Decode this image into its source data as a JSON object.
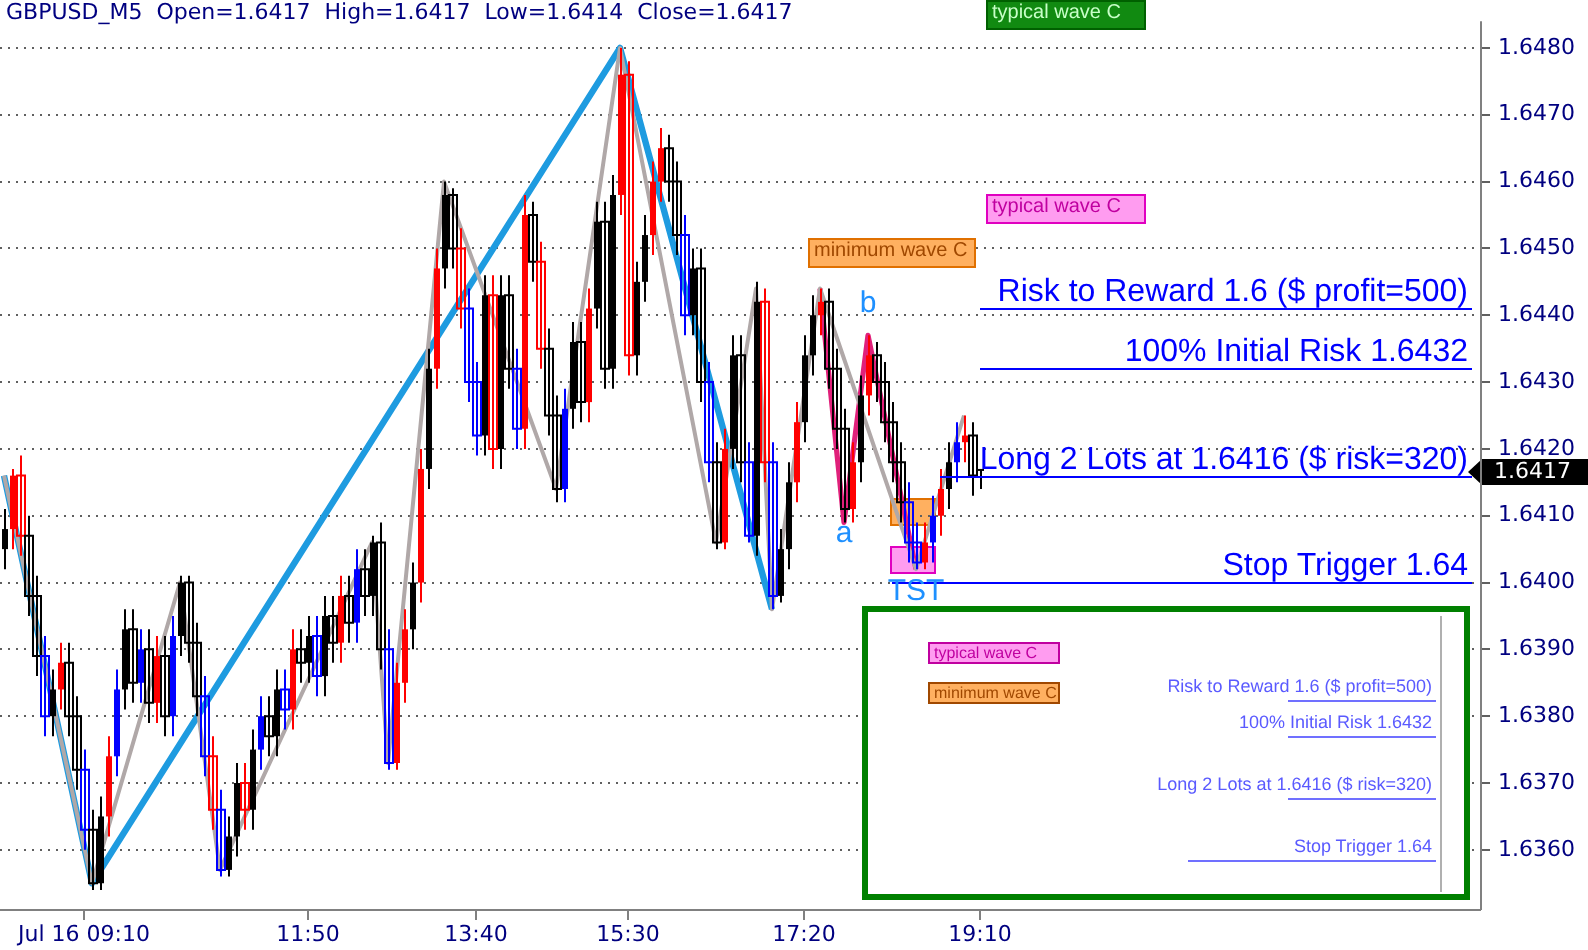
{
  "chart_data": {
    "type": "candlestick",
    "title": "GBPUSD_M5  Open=1.6417  High=1.6417  Low=1.6414  Close=1.6417",
    "categories": [
      null,
      null,
      null,
      null,
      null,
      null,
      null,
      null,
      null,
      null,
      "Jul 16 09:10",
      null,
      null,
      null,
      null,
      null,
      null,
      null,
      null,
      null,
      null,
      null,
      null,
      null,
      null,
      null,
      null,
      null,
      null,
      null,
      null,
      null,
      null,
      null,
      null,
      null,
      null,
      null,
      "11:50",
      null,
      null,
      null,
      null,
      null,
      null,
      null,
      null,
      null,
      null,
      null,
      null,
      null,
      null,
      null,
      null,
      null,
      null,
      null,
      null,
      "13:40",
      null,
      null,
      null,
      null,
      null,
      null,
      null,
      null,
      null,
      null,
      null,
      null,
      null,
      null,
      null,
      null,
      null,
      null,
      "15:30",
      null,
      null,
      null,
      null,
      null,
      null,
      null,
      null,
      null,
      null,
      null,
      null,
      null,
      null,
      null,
      null,
      null,
      null,
      null,
      null,
      null,
      "17:20",
      null,
      null,
      null,
      null,
      null,
      null,
      null,
      null,
      null,
      null,
      null,
      null,
      null,
      null,
      null,
      null,
      null,
      null,
      null,
      null,
      null,
      "19:10",
      null,
      null,
      null,
      null,
      null,
      null,
      null,
      null,
      null,
      null,
      null,
      null,
      null,
      null,
      null,
      null,
      null,
      null,
      null,
      null,
      null,
      null,
      null,
      null,
      null,
      null,
      null,
      null,
      null,
      null,
      null,
      null,
      null,
      null,
      null,
      null,
      null,
      null,
      null,
      null,
      null,
      null,
      null,
      null,
      null,
      null,
      null,
      null,
      null,
      null,
      null,
      null,
      null,
      null,
      null,
      null,
      null,
      null,
      null,
      null,
      null,
      null
    ],
    "ohlc": [
      [
        1.6405,
        1.6411,
        1.6402,
        1.6408
      ],
      [
        1.6408,
        1.6417,
        1.6405,
        1.6416
      ],
      [
        1.6416,
        1.6419,
        1.6404,
        1.6407
      ],
      [
        1.6407,
        1.641,
        1.6395,
        1.6398
      ],
      [
        1.6398,
        1.6401,
        1.6386,
        1.6389
      ],
      [
        1.6389,
        1.6392,
        1.6377,
        1.638
      ],
      [
        1.638,
        1.6387,
        1.6377,
        1.6384
      ],
      [
        1.6384,
        1.6391,
        1.6381,
        1.6388
      ],
      [
        1.6388,
        1.6391,
        1.6377,
        1.638
      ],
      [
        1.638,
        1.6383,
        1.6369,
        1.6372
      ],
      [
        1.6372,
        1.6375,
        1.636,
        1.6363
      ],
      [
        1.6363,
        1.6366,
        1.6354,
        1.6355
      ],
      [
        1.6355,
        1.6368,
        1.6354,
        1.6365
      ],
      [
        1.6365,
        1.6377,
        1.6362,
        1.6374
      ],
      [
        1.6374,
        1.6387,
        1.6371,
        1.6384
      ],
      [
        1.6384,
        1.6396,
        1.6381,
        1.6393
      ],
      [
        1.6393,
        1.6396,
        1.6382,
        1.6385
      ],
      [
        1.6385,
        1.6393,
        1.6382,
        1.639
      ],
      [
        1.639,
        1.6393,
        1.6379,
        1.6382
      ],
      [
        1.6382,
        1.6392,
        1.6379,
        1.6389
      ],
      [
        1.6389,
        1.6392,
        1.6377,
        1.638
      ],
      [
        1.638,
        1.6395,
        1.6377,
        1.6392
      ],
      [
        1.6392,
        1.6401,
        1.6389,
        1.64
      ],
      [
        1.64,
        1.6401,
        1.6388,
        1.6391
      ],
      [
        1.6391,
        1.6394,
        1.638,
        1.6383
      ],
      [
        1.6383,
        1.6386,
        1.6371,
        1.6374
      ],
      [
        1.6374,
        1.6377,
        1.6363,
        1.6366
      ],
      [
        1.6366,
        1.6369,
        1.6356,
        1.6357
      ],
      [
        1.6357,
        1.6365,
        1.6356,
        1.6362
      ],
      [
        1.6362,
        1.6373,
        1.6359,
        1.637
      ],
      [
        1.637,
        1.6373,
        1.6363,
        1.6366
      ],
      [
        1.6366,
        1.6378,
        1.6363,
        1.6375
      ],
      [
        1.6375,
        1.6383,
        1.6372,
        1.638
      ],
      [
        1.638,
        1.6383,
        1.6374,
        1.6377
      ],
      [
        1.6377,
        1.6387,
        1.6374,
        1.6384
      ],
      [
        1.6384,
        1.6387,
        1.6378,
        1.6381
      ],
      [
        1.6381,
        1.6393,
        1.6378,
        1.639
      ],
      [
        1.639,
        1.6393,
        1.6385,
        1.6388
      ],
      [
        1.6388,
        1.6395,
        1.6385,
        1.6392
      ],
      [
        1.6392,
        1.6395,
        1.6383,
        1.6386
      ],
      [
        1.6386,
        1.6398,
        1.6383,
        1.6395
      ],
      [
        1.6395,
        1.6398,
        1.6388,
        1.6391
      ],
      [
        1.6391,
        1.6401,
        1.6388,
        1.6398
      ],
      [
        1.6398,
        1.6401,
        1.6391,
        1.6394
      ],
      [
        1.6394,
        1.6405,
        1.6391,
        1.6402
      ],
      [
        1.6402,
        1.6405,
        1.6395,
        1.6398
      ],
      [
        1.6398,
        1.6407,
        1.6395,
        1.6406
      ],
      [
        1.6406,
        1.6409,
        1.6387,
        1.639
      ],
      [
        1.639,
        1.6393,
        1.6372,
        1.6373
      ],
      [
        1.6373,
        1.6388,
        1.6372,
        1.6385
      ],
      [
        1.6385,
        1.6396,
        1.6382,
        1.6393
      ],
      [
        1.6393,
        1.6403,
        1.639,
        1.64
      ],
      [
        1.64,
        1.642,
        1.6397,
        1.6417
      ],
      [
        1.6417,
        1.6435,
        1.6414,
        1.6432
      ],
      [
        1.6432,
        1.645,
        1.6429,
        1.6447
      ],
      [
        1.6447,
        1.646,
        1.6444,
        1.6458
      ],
      [
        1.6458,
        1.6459,
        1.6447,
        1.645
      ],
      [
        1.645,
        1.6453,
        1.6438,
        1.6441
      ],
      [
        1.6441,
        1.6444,
        1.6427,
        1.643
      ],
      [
        1.643,
        1.6433,
        1.6419,
        1.6422
      ],
      [
        1.6422,
        1.6446,
        1.6419,
        1.6443
      ],
      [
        1.6443,
        1.6446,
        1.6417,
        1.642
      ],
      [
        1.642,
        1.6446,
        1.6417,
        1.6443
      ],
      [
        1.6443,
        1.6446,
        1.6429,
        1.6432
      ],
      [
        1.6432,
        1.6435,
        1.642,
        1.6423
      ],
      [
        1.6423,
        1.6458,
        1.642,
        1.6455
      ],
      [
        1.6455,
        1.6457,
        1.6445,
        1.6448
      ],
      [
        1.6448,
        1.6451,
        1.6432,
        1.6435
      ],
      [
        1.6435,
        1.6438,
        1.6422,
        1.6425
      ],
      [
        1.6425,
        1.6428,
        1.6412,
        1.6414
      ],
      [
        1.6414,
        1.6429,
        1.6412,
        1.6426
      ],
      [
        1.6426,
        1.6439,
        1.6423,
        1.6436
      ],
      [
        1.6436,
        1.6439,
        1.6424,
        1.6427
      ],
      [
        1.6427,
        1.6444,
        1.6424,
        1.6441
      ],
      [
        1.6441,
        1.6457,
        1.6438,
        1.6454
      ],
      [
        1.6454,
        1.6457,
        1.6429,
        1.6432
      ],
      [
        1.6432,
        1.6461,
        1.6429,
        1.6458
      ],
      [
        1.6458,
        1.648,
        1.6455,
        1.6476
      ],
      [
        1.6476,
        1.6478,
        1.6431,
        1.6434
      ],
      [
        1.6434,
        1.6448,
        1.6431,
        1.6445
      ],
      [
        1.6445,
        1.6455,
        1.6442,
        1.6452
      ],
      [
        1.6452,
        1.6463,
        1.6449,
        1.646
      ],
      [
        1.646,
        1.6468,
        1.6457,
        1.6465
      ],
      [
        1.6465,
        1.6467,
        1.6457,
        1.646
      ],
      [
        1.646,
        1.6463,
        1.6449,
        1.6452
      ],
      [
        1.6452,
        1.6455,
        1.6437,
        1.644
      ],
      [
        1.644,
        1.645,
        1.6437,
        1.6447
      ],
      [
        1.6447,
        1.645,
        1.6427,
        1.643
      ],
      [
        1.643,
        1.6433,
        1.6415,
        1.6418
      ],
      [
        1.6418,
        1.6421,
        1.6405,
        1.6406
      ],
      [
        1.6406,
        1.6423,
        1.6405,
        1.642
      ],
      [
        1.642,
        1.6437,
        1.6417,
        1.6434
      ],
      [
        1.6434,
        1.6437,
        1.6415,
        1.6418
      ],
      [
        1.6418,
        1.6421,
        1.6406,
        1.6407
      ],
      [
        1.6407,
        1.6445,
        1.6404,
        1.6442
      ],
      [
        1.6442,
        1.6444,
        1.6415,
        1.6418
      ],
      [
        1.6418,
        1.6421,
        1.6396,
        1.6398
      ],
      [
        1.6398,
        1.6408,
        1.6397,
        1.6405
      ],
      [
        1.6405,
        1.6418,
        1.6402,
        1.6415
      ],
      [
        1.6415,
        1.6427,
        1.6412,
        1.6424
      ],
      [
        1.6424,
        1.6437,
        1.6421,
        1.6434
      ],
      [
        1.6434,
        1.6443,
        1.6431,
        1.644
      ],
      [
        1.644,
        1.6444,
        1.6437,
        1.6442
      ],
      [
        1.6442,
        1.6444,
        1.6429,
        1.6432
      ],
      [
        1.6432,
        1.6435,
        1.642,
        1.6423
      ],
      [
        1.6423,
        1.6426,
        1.6409,
        1.6411
      ],
      [
        1.6411,
        1.6421,
        1.6409,
        1.6418
      ],
      [
        1.6418,
        1.6431,
        1.6415,
        1.6428
      ],
      [
        1.6428,
        1.6437,
        1.6425,
        1.6434
      ],
      [
        1.6434,
        1.6436,
        1.6427,
        1.643
      ],
      [
        1.643,
        1.6433,
        1.6421,
        1.6424
      ],
      [
        1.6424,
        1.6427,
        1.6415,
        1.6418
      ],
      [
        1.6418,
        1.6421,
        1.6409,
        1.6412
      ],
      [
        1.6412,
        1.6415,
        1.6403,
        1.6406
      ],
      [
        1.6406,
        1.6409,
        1.6402,
        1.6403
      ],
      [
        1.6403,
        1.6409,
        1.6402,
        1.6406
      ],
      [
        1.6406,
        1.6413,
        1.6403,
        1.641
      ],
      [
        1.641,
        1.6417,
        1.6407,
        1.6414
      ],
      [
        1.6414,
        1.6421,
        1.6411,
        1.6418
      ],
      [
        1.6418,
        1.6424,
        1.6415,
        1.6421
      ],
      [
        1.6421,
        1.6425,
        1.6418,
        1.6422
      ],
      [
        1.6422,
        1.6424,
        1.6413,
        1.6416
      ],
      [
        1.6417,
        1.6417,
        1.6414,
        1.6417
      ],
      null,
      null,
      null,
      null,
      null,
      null,
      null,
      null,
      null,
      null,
      null,
      null,
      null,
      null,
      null,
      null,
      null,
      null,
      null,
      null,
      null,
      null,
      null,
      null,
      null,
      null,
      null,
      null,
      null,
      null,
      null,
      null,
      null,
      null,
      null,
      null,
      null,
      null,
      null,
      null,
      null,
      null,
      null,
      null,
      null,
      null,
      null,
      null,
      null,
      null,
      null,
      null,
      null,
      null,
      null,
      null,
      null,
      null,
      null,
      null,
      null,
      null
    ],
    "colors": [
      "#000000",
      "#ff0000",
      "#ff0000",
      "#000000",
      "#000000",
      "#0000ff",
      "#000000",
      "#ff0000",
      "#000000",
      "#000000",
      "#0000ff",
      "#000000",
      "#000000",
      "#ff0000",
      "#0000ff",
      "#000000",
      "#000000",
      "#0000ff",
      "#000000",
      "#ff0000",
      "#000000",
      "#0000ff",
      "#000000",
      "#000000",
      "#000000",
      "#0000ff",
      "#ff0000",
      "#0000ff",
      "#000000",
      "#000000",
      "#ff0000",
      "#000000",
      "#0000ff",
      "#000000",
      "#000000",
      "#0000ff",
      "#ff0000",
      "#000000",
      "#000000",
      "#0000ff",
      "#000000",
      "#000000",
      "#ff0000",
      "#000000",
      "#0000ff",
      "#000000",
      "#000000",
      "#000000",
      "#0000ff",
      "#ff0000",
      "#ff0000",
      "#000000",
      "#ff0000",
      "#000000",
      "#ff0000",
      "#000000",
      "#000000",
      "#ff0000",
      "#0000ff",
      "#0000ff",
      "#000000",
      "#ff0000",
      "#000000",
      "#000000",
      "#0000ff",
      "#ff0000",
      "#000000",
      "#ff0000",
      "#000000",
      "#000000",
      "#0000ff",
      "#000000",
      "#000000",
      "#ff0000",
      "#000000",
      "#000000",
      "#000000",
      "#ff0000",
      "#ff0000",
      "#000000",
      "#000000",
      "#ff0000",
      "#ff0000",
      "#000000",
      "#000000",
      "#0000ff",
      "#000000",
      "#000000",
      "#0000ff",
      "#000000",
      "#ff0000",
      "#000000",
      "#000000",
      "#0000ff",
      "#000000",
      "#ff0000",
      "#0000ff",
      "#000000",
      "#000000",
      "#ff0000",
      "#000000",
      "#000000",
      "#ff0000",
      "#000000",
      "#000000",
      "#000000",
      "#ff0000",
      "#000000",
      "#ff0000",
      "#000000",
      "#000000",
      "#000000",
      "#000000",
      "#0000ff",
      "#0000ff",
      "#ff0000",
      "#0000ff",
      "#ff0000",
      "#000000",
      "#0000ff",
      "#ff0000",
      "#000000",
      "#000000",
      null,
      null,
      null,
      null,
      null,
      null,
      null,
      null,
      null,
      null,
      null,
      null,
      null,
      null,
      null,
      null,
      null,
      null,
      null,
      null,
      null,
      null,
      null,
      null,
      null,
      null,
      null,
      null,
      null,
      null,
      null,
      null,
      null,
      null,
      null,
      null,
      null,
      null,
      null,
      null,
      null,
      null,
      null,
      null,
      null,
      null,
      null,
      null,
      null,
      null,
      null,
      null,
      null,
      null,
      null,
      null,
      null,
      null,
      null,
      null,
      null,
      null
    ],
    "series": [
      {
        "type": "line",
        "color": "#b0a8a8",
        "values": [
          1.6416,
          null,
          null,
          null,
          null,
          null,
          null,
          null,
          null,
          null,
          null,
          1.6355,
          null,
          null,
          null,
          null,
          null,
          null,
          null,
          null,
          null,
          null,
          1.64,
          null,
          null,
          null,
          null,
          1.6357,
          null,
          null,
          null,
          null,
          null,
          null,
          null,
          null,
          null,
          null,
          null,
          null,
          null,
          null,
          null,
          null,
          null,
          null,
          1.6406,
          null,
          1.6373,
          null,
          null,
          null,
          null,
          null,
          null,
          1.646,
          null,
          null,
          null,
          null,
          null,
          null,
          null,
          null,
          null,
          null,
          null,
          null,
          null,
          1.6414,
          null,
          null,
          null,
          null,
          null,
          null,
          null,
          1.648,
          null,
          null,
          null,
          null,
          null,
          null,
          null,
          null,
          null,
          null,
          null,
          1.6406,
          null,
          null,
          null,
          null,
          1.6444,
          null,
          1.6396,
          null,
          null,
          null,
          null,
          null,
          1.6444,
          null,
          null,
          null,
          null,
          null,
          null,
          null,
          null,
          null,
          null,
          null,
          1.6402,
          null,
          null,
          null,
          null,
          null,
          1.6425,
          null,
          null,
          null,
          null,
          null,
          null,
          null,
          null,
          null,
          null,
          null,
          null,
          null,
          null,
          null,
          null,
          null,
          null,
          null,
          null,
          null,
          null,
          null,
          null,
          null,
          null,
          null,
          null,
          null,
          null,
          null,
          null,
          null,
          null,
          null,
          null,
          null,
          null,
          null,
          null,
          null,
          null,
          null,
          null,
          null,
          null,
          null,
          null,
          null,
          null,
          null,
          null,
          null,
          null,
          null,
          null,
          null,
          null,
          null,
          null,
          null,
          null,
          null,
          null
        ]
      },
      {
        "type": "line",
        "color": "#e0207a",
        "values": [
          null,
          null,
          null,
          null,
          null,
          null,
          null,
          null,
          null,
          null,
          null,
          null,
          null,
          null,
          null,
          null,
          null,
          null,
          null,
          null,
          null,
          null,
          null,
          null,
          null,
          null,
          null,
          null,
          null,
          null,
          null,
          null,
          null,
          null,
          null,
          null,
          null,
          null,
          null,
          null,
          null,
          null,
          null,
          null,
          null,
          null,
          null,
          null,
          null,
          null,
          null,
          null,
          null,
          null,
          null,
          null,
          null,
          null,
          null,
          null,
          null,
          null,
          null,
          null,
          null,
          null,
          null,
          null,
          null,
          null,
          null,
          null,
          null,
          null,
          null,
          null,
          null,
          null,
          null,
          null,
          null,
          null,
          null,
          null,
          null,
          null,
          null,
          null,
          null,
          null,
          null,
          null,
          null,
          null,
          null,
          null,
          null,
          null,
          null,
          null,
          null,
          null,
          1.6444,
          null,
          null,
          1.6409,
          null,
          null,
          1.6437,
          null,
          null,
          null,
          null,
          null,
          1.6402,
          null,
          null,
          null,
          null,
          null,
          null,
          null,
          null,
          null,
          null,
          null,
          null,
          null,
          null,
          null,
          null,
          null,
          null,
          null,
          null,
          null,
          null,
          null,
          null,
          null,
          null,
          null,
          null,
          null,
          null,
          null,
          null,
          null,
          null,
          null,
          null,
          null,
          null,
          null,
          null,
          null,
          null,
          null,
          null,
          null,
          null,
          null,
          null,
          null,
          null,
          null,
          null,
          null,
          null,
          null,
          null,
          null,
          null,
          null,
          null,
          null,
          null,
          null,
          null,
          null,
          null,
          null,
          null,
          null,
          null
        ]
      },
      {
        "type": "line",
        "color": "#1e9be0",
        "values": [
          1.6416,
          null,
          null,
          null,
          null,
          null,
          null,
          null,
          null,
          null,
          null,
          1.6355,
          null,
          null,
          null,
          null,
          null,
          null,
          null,
          null,
          null,
          null,
          null,
          null,
          null,
          null,
          null,
          null,
          null,
          null,
          null,
          null,
          null,
          null,
          null,
          null,
          null,
          null,
          null,
          null,
          null,
          null,
          null,
          null,
          null,
          null,
          null,
          null,
          null,
          null,
          null,
          null,
          null,
          null,
          null,
          null,
          null,
          null,
          null,
          null,
          null,
          null,
          null,
          null,
          null,
          null,
          null,
          null,
          null,
          null,
          null,
          null,
          null,
          null,
          null,
          null,
          null,
          1.648,
          null,
          null,
          null,
          null,
          null,
          null,
          null,
          null,
          null,
          null,
          null,
          null,
          null,
          null,
          null,
          null,
          null,
          null,
          1.6396,
          null,
          null,
          null,
          null,
          null,
          null,
          null,
          null,
          null,
          null,
          null,
          null,
          null,
          null,
          null,
          null,
          null,
          null,
          null,
          null,
          null,
          null,
          null,
          null,
          null,
          null,
          null,
          null,
          null,
          null,
          null,
          null,
          null,
          null,
          null,
          null,
          null,
          null,
          null,
          null,
          null,
          null,
          null,
          null,
          null,
          null,
          null,
          null,
          null,
          null,
          null,
          null,
          null,
          null,
          null,
          null,
          null,
          null,
          null,
          null,
          null,
          null,
          null,
          null,
          null,
          null,
          null,
          null,
          null,
          null,
          null,
          null,
          null,
          null,
          null,
          null,
          null,
          null,
          null,
          null,
          null,
          null,
          null,
          null,
          null,
          null,
          null,
          null
        ]
      }
    ],
    "ylim": [
      1.6351,
      1.6484
    ],
    "yticks": [
      {
        "value": 1.636,
        "label": "1.6360"
      },
      {
        "value": 1.637,
        "label": "1.6370"
      },
      {
        "value": 1.638,
        "label": "1.6380"
      },
      {
        "value": 1.639,
        "label": "1.6390"
      },
      {
        "value": 1.64,
        "label": "1.6400"
      },
      {
        "value": 1.641,
        "label": "1.6410"
      },
      {
        "value": 1.642,
        "label": "1.6420"
      },
      {
        "value": 1.643,
        "label": "1.6430"
      },
      {
        "value": 1.644,
        "label": "1.6440"
      },
      {
        "value": 1.645,
        "label": "1.6450"
      },
      {
        "value": 1.646,
        "label": "1.6460"
      },
      {
        "value": 1.647,
        "label": "1.6470"
      },
      {
        "value": 1.648,
        "label": "1.6480"
      }
    ],
    "grid": "y",
    "ref_lines": [
      {
        "axis": "y",
        "value": 1.6441,
        "label": "Risk to Reward 1.6 ($ profit=500)",
        "color": "#0000ff"
      },
      {
        "axis": "y",
        "value": 1.6432,
        "label": "100% Initial Risk 1.6432",
        "color": "#0000ff"
      },
      {
        "axis": "y",
        "value": 1.6416,
        "label": "Long 2 Lots at 1.6416 ($ risk=320)",
        "color": "#0000ff"
      },
      {
        "axis": "y",
        "value": 1.64,
        "label": "Stop Trigger 1.64",
        "color": "#0000ff"
      }
    ],
    "annotations": [
      "typical wave C",
      "minimum wave C",
      "typical wave C",
      "a",
      "b",
      "TST",
      "1.6417"
    ]
  }
}
